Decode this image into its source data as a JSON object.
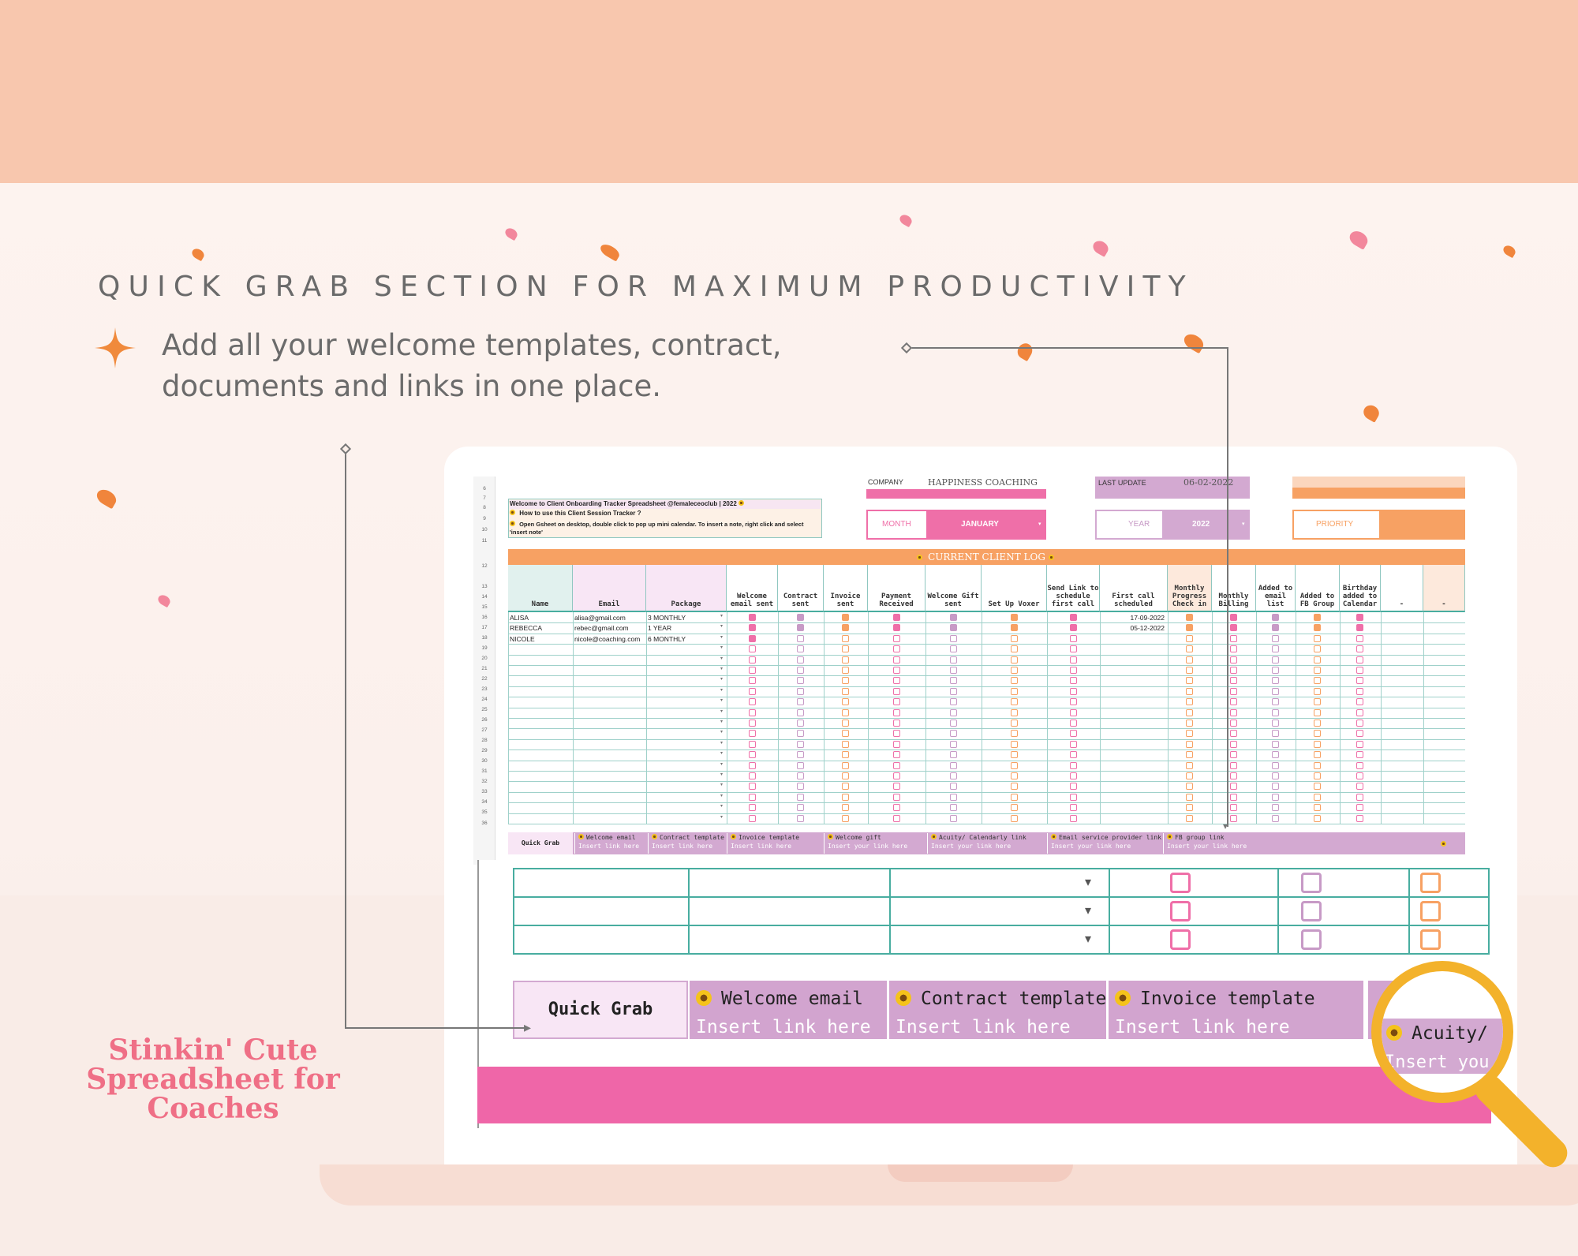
{
  "marketing": {
    "heading": "QUICK GRAB SECTION FOR MAXIMUM PRODUCTIVITY",
    "subheading": "Add all your welcome templates, contract, documents and links in one place.",
    "brand": "Stinkin' Cute Spreadsheet for Coaches",
    "colors": {
      "band": "#f8c7ae",
      "accent": "#f08a3c",
      "pink": "#ef6fa8",
      "lilac": "#d4a5cf"
    }
  },
  "sheet": {
    "company_label": "COMPANY",
    "company_value": "HAPPINESS COACHING",
    "last_update_label": "LAST UPDATE",
    "last_update_value": "06-02-2022",
    "month_label": "MONTH",
    "month_value": "JANUARY",
    "year_label": "YEAR",
    "year_value": "2022",
    "priority_label": "PRIORITY",
    "welcome_line": "Welcome to Client Onboarding Tracker Spreadsheet @femaleceoclub | 2022",
    "howto_line": "How to use this Client Session Tracker ?",
    "tip_line": "Open Gsheet on desktop, double click to pop up mini calendar. To insert a note, right click and select 'insert note'",
    "log_title": "CURRENT CLIENT LOG",
    "columns": [
      "Name",
      "Email",
      "Package",
      "Welcome email sent",
      "Contract sent",
      "Invoice sent",
      "Payment Received",
      "Welcome Gift sent",
      "Set Up Voxer",
      "Send Link to schedule first call",
      "First call scheduled",
      "Monthly Progress Check in",
      "Monthly Billing",
      "Added to email list",
      "Added to FB Group",
      "Birthday added to Calendar",
      "-",
      "-"
    ],
    "clients": [
      {
        "name": "ALISA",
        "email": "alisa@gmail.com",
        "package": "3 MONTHLY",
        "first_call": "17-09-2022"
      },
      {
        "name": "REBECCA",
        "email": "rebec@gmail.com",
        "package": "1 YEAR",
        "first_call": "05-12-2022"
      },
      {
        "name": "NICOLE",
        "email": "nicole@coaching.com",
        "package": "6 MONTHLY",
        "first_call": ""
      }
    ],
    "row_numbers": [
      "6",
      "7",
      "8",
      "9",
      "10",
      "11",
      "12",
      "13",
      "14",
      "15",
      "16",
      "17",
      "18",
      "19",
      "20",
      "21",
      "22",
      "23",
      "24",
      "25",
      "26",
      "27",
      "28",
      "29",
      "30",
      "31",
      "32",
      "33",
      "34",
      "35",
      "36"
    ],
    "quick_grab_label": "Quick Grab",
    "quick_grab": [
      {
        "title": "Welcome email",
        "link": "Insert link here"
      },
      {
        "title": "Contract template",
        "link": "Insert link here"
      },
      {
        "title": "Invoice template",
        "link": "Insert  link here"
      },
      {
        "title": "Welcome gift",
        "link": "Insert your link here"
      },
      {
        "title": "Acuity/ Calendarly link",
        "link": "Insert your link here"
      },
      {
        "title": "Email service provider link",
        "link": "Insert your link here"
      },
      {
        "title": "FB group link",
        "link": "Insert your link here"
      }
    ]
  },
  "zoom": {
    "quick_grab_label": "Quick Grab",
    "items": [
      {
        "title": "Welcome email",
        "link": "Insert link here"
      },
      {
        "title": "Contract template",
        "link": "Insert link here"
      },
      {
        "title": "Invoice template",
        "link": "Insert  link here"
      }
    ],
    "magnified_title": "Acuity/",
    "magnified_link": "Insert you"
  }
}
